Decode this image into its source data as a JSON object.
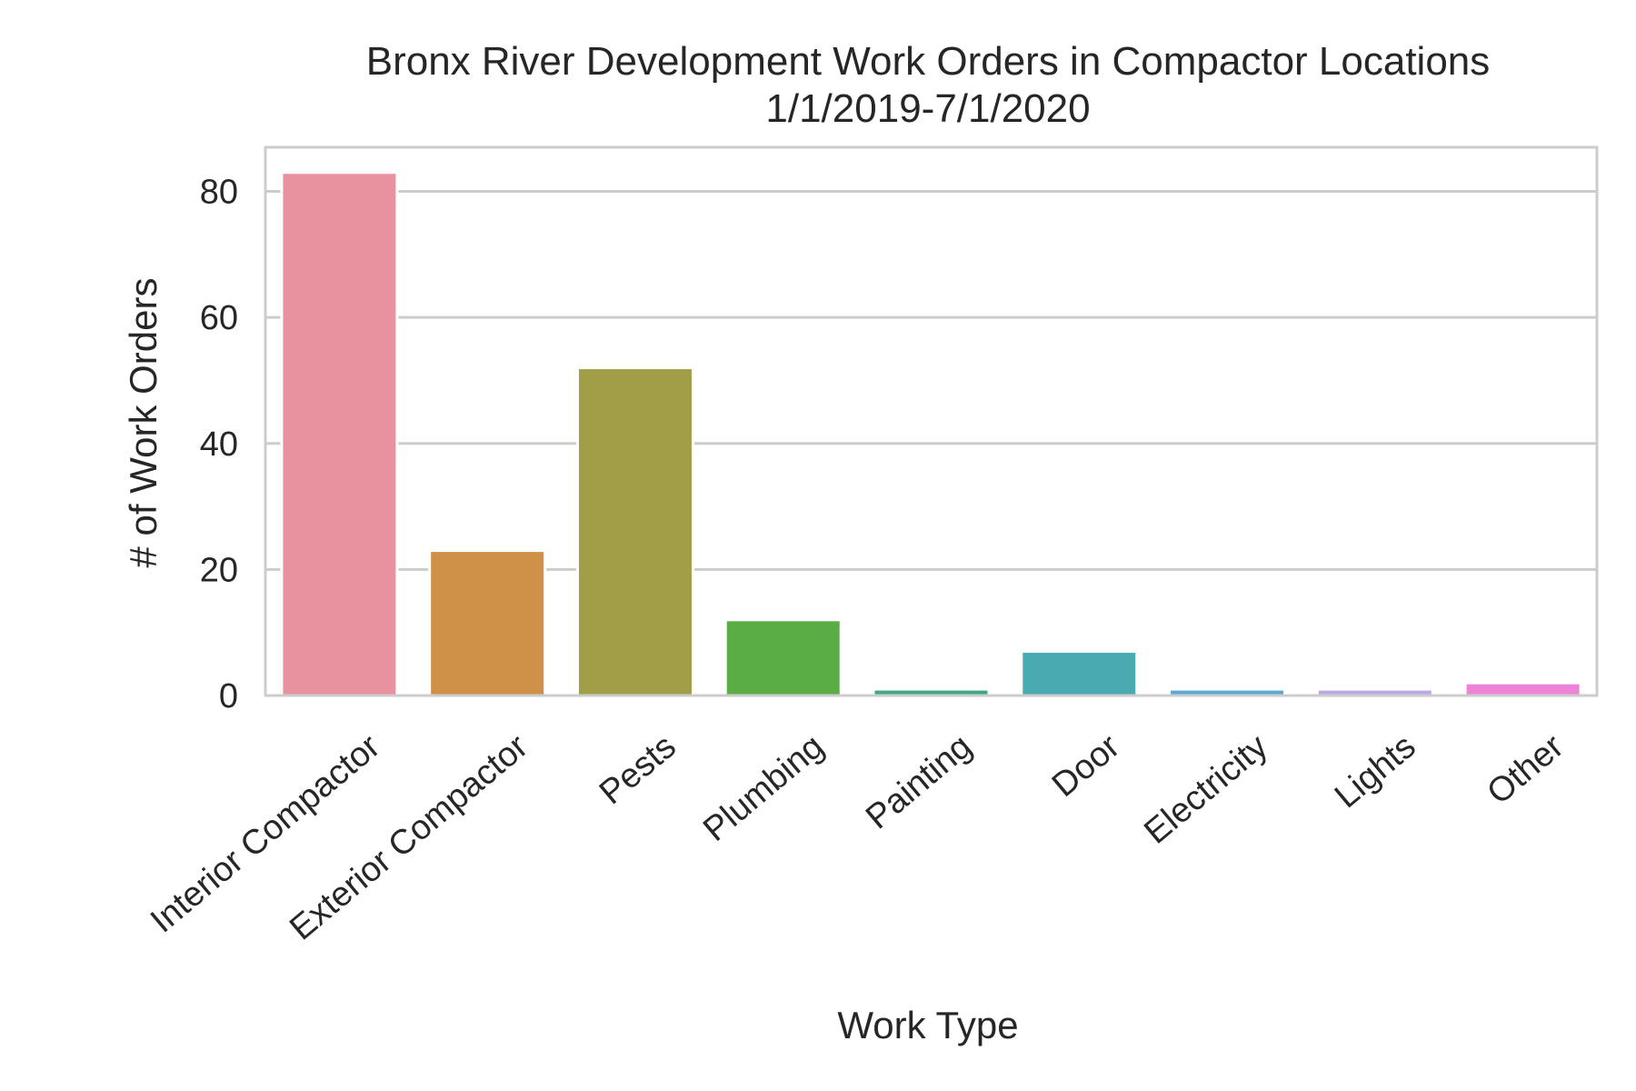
{
  "chart_data": {
    "type": "bar",
    "title": "Bronx River Development Work Orders in Compactor Locations",
    "subtitle": "1/1/2019-7/1/2020",
    "xlabel": "Work Type",
    "ylabel": "# of Work Orders",
    "categories": [
      "Interior Compactor",
      "Exterior Compactor",
      "Pests",
      "Plumbing",
      "Painting",
      "Door",
      "Electricity",
      "Lights",
      "Other"
    ],
    "values": [
      83,
      23,
      52,
      12,
      1,
      7,
      1,
      1,
      2
    ],
    "colors": [
      "#e8919f",
      "#cf9148",
      "#a19e47",
      "#5aad44",
      "#3daa7f",
      "#48abb1",
      "#59a9d6",
      "#bfa6e9",
      "#ec83d6"
    ],
    "yticks": [
      0,
      20,
      40,
      60,
      80
    ],
    "ylim": [
      0,
      87
    ],
    "grid": true,
    "grid_axis": "y"
  }
}
